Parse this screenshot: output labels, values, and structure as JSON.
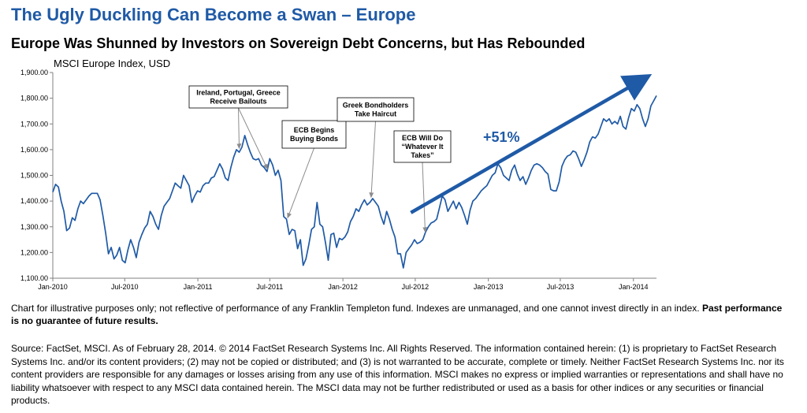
{
  "header": {
    "title": "The Ugly Duckling Can Become a Swan – Europe",
    "subtitle": "Europe Was Shunned by Investors on Sovereign Debt Concerns, but Has Rebounded"
  },
  "chart_data": {
    "type": "line",
    "ylabel": "MSCI Europe Index, USD",
    "xlabel": "",
    "ylim": [
      1100,
      1900
    ],
    "yticks": [
      "1,100.00",
      "1,200.00",
      "1,300.00",
      "1,400.00",
      "1,500.00",
      "1,600.00",
      "1,700.00",
      "1,800.00",
      "1,900.00"
    ],
    "xtick_labels": [
      "Jan-2010",
      "Jul-2010",
      "Jan-2011",
      "Jul-2011",
      "Jan-2012",
      "Jul-2012",
      "Jan-2013",
      "Jul-2013",
      "Jan-2014"
    ],
    "x_start": "2010-01-01",
    "x_end": "2014-02-28",
    "colors": {
      "line": "#1f5aa6",
      "trend_arrow": "#1f5aa6",
      "annotation_line": "#8c8c8c"
    },
    "series": [
      {
        "name": "",
        "points": [
          [
            "2010-01-01",
            1435
          ],
          [
            "2010-01-08",
            1465
          ],
          [
            "2010-01-15",
            1455
          ],
          [
            "2010-01-22",
            1400
          ],
          [
            "2010-01-29",
            1360
          ],
          [
            "2010-02-05",
            1285
          ],
          [
            "2010-02-12",
            1295
          ],
          [
            "2010-02-19",
            1335
          ],
          [
            "2010-02-26",
            1325
          ],
          [
            "2010-03-05",
            1370
          ],
          [
            "2010-03-12",
            1400
          ],
          [
            "2010-03-19",
            1390
          ],
          [
            "2010-03-26",
            1405
          ],
          [
            "2010-04-02",
            1420
          ],
          [
            "2010-04-09",
            1430
          ],
          [
            "2010-04-16",
            1430
          ],
          [
            "2010-04-23",
            1430
          ],
          [
            "2010-04-30",
            1405
          ],
          [
            "2010-05-07",
            1345
          ],
          [
            "2010-05-14",
            1275
          ],
          [
            "2010-05-21",
            1195
          ],
          [
            "2010-05-28",
            1220
          ],
          [
            "2010-06-04",
            1175
          ],
          [
            "2010-06-11",
            1190
          ],
          [
            "2010-06-18",
            1220
          ],
          [
            "2010-06-25",
            1170
          ],
          [
            "2010-07-02",
            1160
          ],
          [
            "2010-07-09",
            1210
          ],
          [
            "2010-07-16",
            1250
          ],
          [
            "2010-07-23",
            1220
          ],
          [
            "2010-07-30",
            1180
          ],
          [
            "2010-08-06",
            1240
          ],
          [
            "2010-08-13",
            1270
          ],
          [
            "2010-08-20",
            1295
          ],
          [
            "2010-08-27",
            1310
          ],
          [
            "2010-09-03",
            1360
          ],
          [
            "2010-09-10",
            1340
          ],
          [
            "2010-09-17",
            1310
          ],
          [
            "2010-09-24",
            1290
          ],
          [
            "2010-10-01",
            1345
          ],
          [
            "2010-10-08",
            1380
          ],
          [
            "2010-10-15",
            1395
          ],
          [
            "2010-10-22",
            1410
          ],
          [
            "2010-10-29",
            1440
          ],
          [
            "2010-11-05",
            1470
          ],
          [
            "2010-11-12",
            1460
          ],
          [
            "2010-11-19",
            1450
          ],
          [
            "2010-11-26",
            1500
          ],
          [
            "2010-12-03",
            1480
          ],
          [
            "2010-12-10",
            1460
          ],
          [
            "2010-12-17",
            1395
          ],
          [
            "2010-12-24",
            1420
          ],
          [
            "2010-12-31",
            1440
          ],
          [
            "2011-01-07",
            1435
          ],
          [
            "2011-01-14",
            1460
          ],
          [
            "2011-01-21",
            1470
          ],
          [
            "2011-01-28",
            1470
          ],
          [
            "2011-02-04",
            1490
          ],
          [
            "2011-02-11",
            1495
          ],
          [
            "2011-02-18",
            1520
          ],
          [
            "2011-02-25",
            1545
          ],
          [
            "2011-03-04",
            1525
          ],
          [
            "2011-03-11",
            1490
          ],
          [
            "2011-03-18",
            1480
          ],
          [
            "2011-03-25",
            1530
          ],
          [
            "2011-04-01",
            1570
          ],
          [
            "2011-04-08",
            1600
          ],
          [
            "2011-04-15",
            1590
          ],
          [
            "2011-04-22",
            1610
          ],
          [
            "2011-04-29",
            1655
          ],
          [
            "2011-05-06",
            1620
          ],
          [
            "2011-05-13",
            1590
          ],
          [
            "2011-05-20",
            1565
          ],
          [
            "2011-05-27",
            1560
          ],
          [
            "2011-06-03",
            1565
          ],
          [
            "2011-06-10",
            1540
          ],
          [
            "2011-06-17",
            1530
          ],
          [
            "2011-06-24",
            1515
          ],
          [
            "2011-07-01",
            1565
          ],
          [
            "2011-07-08",
            1540
          ],
          [
            "2011-07-15",
            1500
          ],
          [
            "2011-07-22",
            1520
          ],
          [
            "2011-07-29",
            1480
          ],
          [
            "2011-08-05",
            1340
          ],
          [
            "2011-08-12",
            1330
          ],
          [
            "2011-08-19",
            1270
          ],
          [
            "2011-08-26",
            1290
          ],
          [
            "2011-09-02",
            1285
          ],
          [
            "2011-09-09",
            1215
          ],
          [
            "2011-09-16",
            1250
          ],
          [
            "2011-09-23",
            1150
          ],
          [
            "2011-09-30",
            1175
          ],
          [
            "2011-10-07",
            1230
          ],
          [
            "2011-10-14",
            1290
          ],
          [
            "2011-10-21",
            1300
          ],
          [
            "2011-10-28",
            1395
          ],
          [
            "2011-11-04",
            1310
          ],
          [
            "2011-11-11",
            1300
          ],
          [
            "2011-11-18",
            1240
          ],
          [
            "2011-11-25",
            1170
          ],
          [
            "2011-12-02",
            1270
          ],
          [
            "2011-12-09",
            1275
          ],
          [
            "2011-12-16",
            1220
          ],
          [
            "2011-12-23",
            1255
          ],
          [
            "2011-12-30",
            1250
          ],
          [
            "2012-01-06",
            1260
          ],
          [
            "2012-01-13",
            1280
          ],
          [
            "2012-01-20",
            1320
          ],
          [
            "2012-01-27",
            1340
          ],
          [
            "2012-02-03",
            1370
          ],
          [
            "2012-02-10",
            1360
          ],
          [
            "2012-02-17",
            1385
          ],
          [
            "2012-02-24",
            1405
          ],
          [
            "2012-03-02",
            1385
          ],
          [
            "2012-03-09",
            1395
          ],
          [
            "2012-03-16",
            1410
          ],
          [
            "2012-03-23",
            1395
          ],
          [
            "2012-03-30",
            1380
          ],
          [
            "2012-04-06",
            1340
          ],
          [
            "2012-04-13",
            1310
          ],
          [
            "2012-04-20",
            1360
          ],
          [
            "2012-04-27",
            1330
          ],
          [
            "2012-05-04",
            1290
          ],
          [
            "2012-05-11",
            1260
          ],
          [
            "2012-05-18",
            1195
          ],
          [
            "2012-05-25",
            1195
          ],
          [
            "2012-06-01",
            1140
          ],
          [
            "2012-06-08",
            1200
          ],
          [
            "2012-06-15",
            1215
          ],
          [
            "2012-06-22",
            1230
          ],
          [
            "2012-06-29",
            1250
          ],
          [
            "2012-07-06",
            1235
          ],
          [
            "2012-07-13",
            1240
          ],
          [
            "2012-07-20",
            1250
          ],
          [
            "2012-07-27",
            1280
          ],
          [
            "2012-08-03",
            1300
          ],
          [
            "2012-08-10",
            1315
          ],
          [
            "2012-08-17",
            1320
          ],
          [
            "2012-08-24",
            1330
          ],
          [
            "2012-08-31",
            1375
          ],
          [
            "2012-09-07",
            1420
          ],
          [
            "2012-09-14",
            1405
          ],
          [
            "2012-09-21",
            1360
          ],
          [
            "2012-09-28",
            1380
          ],
          [
            "2012-10-05",
            1400
          ],
          [
            "2012-10-12",
            1370
          ],
          [
            "2012-10-19",
            1395
          ],
          [
            "2012-10-26",
            1375
          ],
          [
            "2012-11-02",
            1345
          ],
          [
            "2012-11-09",
            1310
          ],
          [
            "2012-11-16",
            1365
          ],
          [
            "2012-11-23",
            1400
          ],
          [
            "2012-11-30",
            1410
          ],
          [
            "2012-12-07",
            1425
          ],
          [
            "2012-12-14",
            1440
          ],
          [
            "2012-12-21",
            1450
          ],
          [
            "2012-12-28",
            1460
          ],
          [
            "2013-01-04",
            1480
          ],
          [
            "2013-01-11",
            1500
          ],
          [
            "2013-01-18",
            1510
          ],
          [
            "2013-01-25",
            1545
          ],
          [
            "2013-02-01",
            1530
          ],
          [
            "2013-02-08",
            1500
          ],
          [
            "2013-02-15",
            1490
          ],
          [
            "2013-02-22",
            1480
          ],
          [
            "2013-03-01",
            1520
          ],
          [
            "2013-03-08",
            1540
          ],
          [
            "2013-03-15",
            1505
          ],
          [
            "2013-03-22",
            1480
          ],
          [
            "2013-03-29",
            1495
          ],
          [
            "2013-04-05",
            1465
          ],
          [
            "2013-04-12",
            1490
          ],
          [
            "2013-04-19",
            1520
          ],
          [
            "2013-04-26",
            1540
          ],
          [
            "2013-05-03",
            1545
          ],
          [
            "2013-05-10",
            1540
          ],
          [
            "2013-05-17",
            1530
          ],
          [
            "2013-05-24",
            1515
          ],
          [
            "2013-05-31",
            1505
          ],
          [
            "2013-06-07",
            1445
          ],
          [
            "2013-06-14",
            1440
          ],
          [
            "2013-06-21",
            1440
          ],
          [
            "2013-06-28",
            1475
          ],
          [
            "2013-07-05",
            1535
          ],
          [
            "2013-07-12",
            1560
          ],
          [
            "2013-07-19",
            1575
          ],
          [
            "2013-07-26",
            1580
          ],
          [
            "2013-08-02",
            1595
          ],
          [
            "2013-08-09",
            1590
          ],
          [
            "2013-08-16",
            1565
          ],
          [
            "2013-08-23",
            1535
          ],
          [
            "2013-08-30",
            1560
          ],
          [
            "2013-09-06",
            1590
          ],
          [
            "2013-09-13",
            1630
          ],
          [
            "2013-09-20",
            1650
          ],
          [
            "2013-09-27",
            1645
          ],
          [
            "2013-10-04",
            1660
          ],
          [
            "2013-10-11",
            1690
          ],
          [
            "2013-10-18",
            1720
          ],
          [
            "2013-10-25",
            1710
          ],
          [
            "2013-11-01",
            1720
          ],
          [
            "2013-11-08",
            1700
          ],
          [
            "2013-11-15",
            1710
          ],
          [
            "2013-11-22",
            1700
          ],
          [
            "2013-11-29",
            1730
          ],
          [
            "2013-12-06",
            1690
          ],
          [
            "2013-12-13",
            1680
          ],
          [
            "2013-12-20",
            1725
          ],
          [
            "2013-12-27",
            1760
          ],
          [
            "2014-01-03",
            1750
          ],
          [
            "2014-01-10",
            1775
          ],
          [
            "2014-01-17",
            1760
          ],
          [
            "2014-01-24",
            1720
          ],
          [
            "2014-01-31",
            1690
          ],
          [
            "2014-02-07",
            1720
          ],
          [
            "2014-02-14",
            1770
          ],
          [
            "2014-02-21",
            1790
          ],
          [
            "2014-02-28",
            1810
          ]
        ]
      }
    ],
    "annotations": [
      {
        "id": "bailouts",
        "lines": [
          "Ireland, Portugal, Greece",
          "Receive Bailouts"
        ],
        "points_to": [
          [
            "2011-04-15",
            1605
          ],
          [
            "2011-06-25",
            1525
          ]
        ]
      },
      {
        "id": "ecb-bonds",
        "lines": [
          "ECB Begins",
          "Buying Bonds"
        ],
        "points_to": [
          [
            "2011-08-15",
            1335
          ]
        ]
      },
      {
        "id": "haircut",
        "lines": [
          "Greek Bondholders",
          "Take Haircut"
        ],
        "points_to": [
          [
            "2012-03-12",
            1415
          ]
        ]
      },
      {
        "id": "whatever",
        "lines": [
          "ECB Will Do",
          "“Whatever It",
          "Takes”"
        ],
        "points_to": [
          [
            "2012-07-26",
            1280
          ]
        ]
      }
    ],
    "trend_label": "+51%",
    "trend_arrow": {
      "from": [
        "2012-06-20",
        1355
      ],
      "to": [
        "2014-02-01",
        1880
      ]
    },
    "grid": false
  },
  "footnote": {
    "disclaimer": "Chart for illustrative purposes only; not reflective of performance of any Franklin Templeton fund. Indexes are unmanaged, and one cannot invest directly in an index.",
    "disclaimer_bold": "Past performance is no guarantee of future results.",
    "source": "Source: FactSet, MSCI. As of February 28, 2014. © 2014 FactSet Research Systems Inc. All Rights Reserved. The information contained herein: (1) is proprietary to FactSet Research Systems Inc. and/or its content providers; (2) may not be copied or distributed; and (3) is not warranted to be accurate, complete or timely. Neither FactSet Research Systems Inc. nor its content providers are responsible for any damages or losses arising from any use of this information. MSCI makes no express or implied warranties or representations and shall have no liability whatsoever with respect to any MSCI data contained herein. The MSCI data may not be further redistributed or used as a basis for other indices or any securities or financial products."
  }
}
